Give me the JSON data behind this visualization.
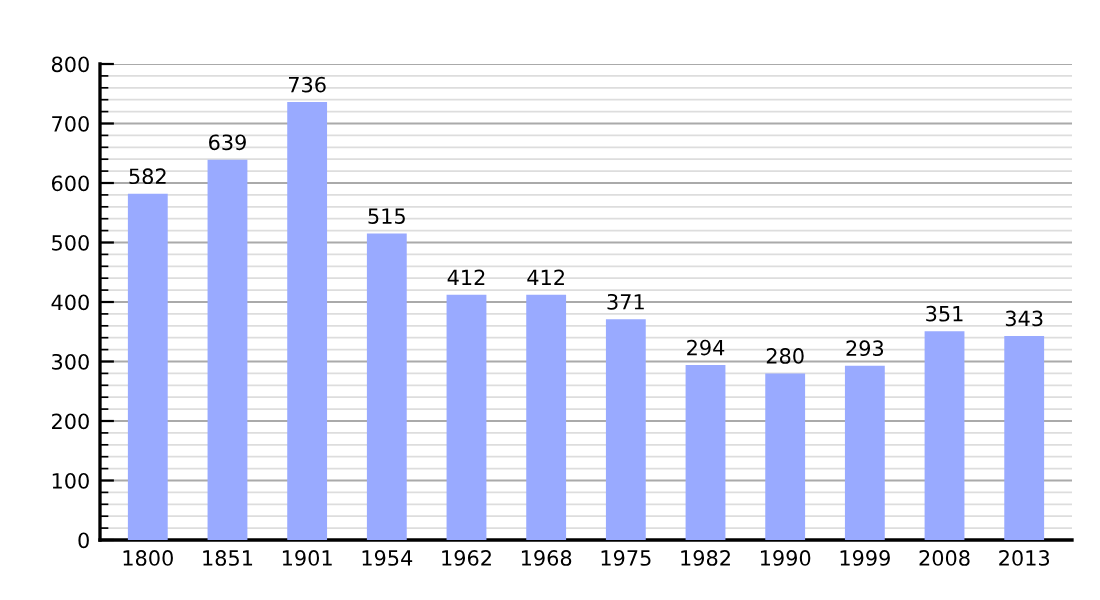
{
  "chart_data": {
    "type": "bar",
    "categories": [
      "1800",
      "1851",
      "1901",
      "1954",
      "1962",
      "1968",
      "1975",
      "1982",
      "1990",
      "1999",
      "2008",
      "2013"
    ],
    "values": [
      582,
      639,
      736,
      515,
      412,
      412,
      371,
      294,
      280,
      293,
      351,
      343
    ],
    "color": "#99aaff",
    "ylim": [
      0,
      800
    ],
    "yticks": [
      0,
      100,
      200,
      300,
      400,
      500,
      600,
      700,
      800
    ],
    "grid": "y",
    "data_labels": true
  }
}
